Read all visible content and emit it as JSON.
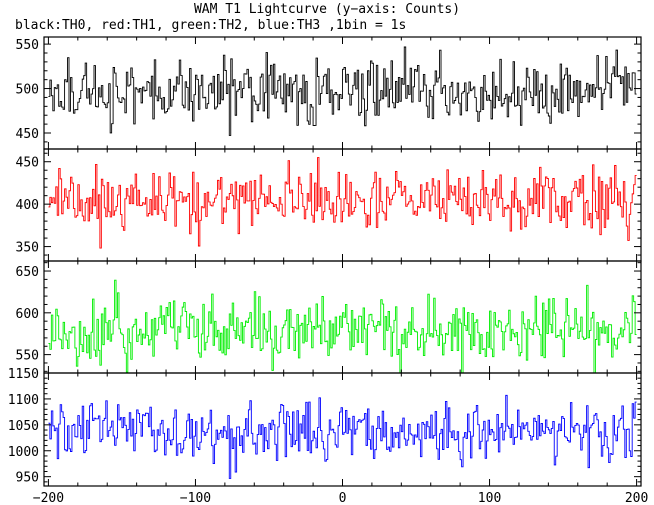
{
  "title": "WAM T1 Lightcurve (y−axis: Counts)",
  "subtitle": "black:TH0, red:TH1, green:TH2, blue:TH3 ,1bin = 1s",
  "chart_data": [
    {
      "type": "line",
      "name": "TH0",
      "color": "#000000",
      "xlim": [
        -203,
        203
      ],
      "ylim": [
        432,
        558
      ],
      "yticks": [
        450,
        500,
        550
      ],
      "mean": 497,
      "amplitude": 22,
      "x_range": [
        -200,
        200
      ],
      "bin": 1
    },
    {
      "type": "line",
      "name": "TH1",
      "color": "#ff0000",
      "xlim": [
        -203,
        203
      ],
      "ylim": [
        333,
        465
      ],
      "yticks": [
        350,
        400,
        450
      ],
      "mean": 405,
      "amplitude": 22,
      "x_range": [
        -200,
        200
      ],
      "bin": 1
    },
    {
      "type": "line",
      "name": "TH2",
      "color": "#00ee00",
      "xlim": [
        -203,
        203
      ],
      "ylim": [
        528,
        662
      ],
      "yticks": [
        550,
        600,
        650
      ],
      "mean": 578,
      "amplitude": 25,
      "x_range": [
        -200,
        200
      ],
      "bin": 1
    },
    {
      "type": "line",
      "name": "TH3",
      "color": "#0000ff",
      "xlim": [
        -203,
        203
      ],
      "ylim": [
        932,
        1150
      ],
      "yticks": [
        950,
        1000,
        1050,
        1100,
        1150
      ],
      "mean": 1035,
      "amplitude": 35,
      "x_range": [
        -200,
        200
      ],
      "bin": 1
    }
  ],
  "x_axis": {
    "ticks": [
      -200,
      -100,
      0,
      100,
      200
    ],
    "tick_labels": [
      "−200",
      "−100",
      "0",
      "100",
      "200"
    ]
  }
}
